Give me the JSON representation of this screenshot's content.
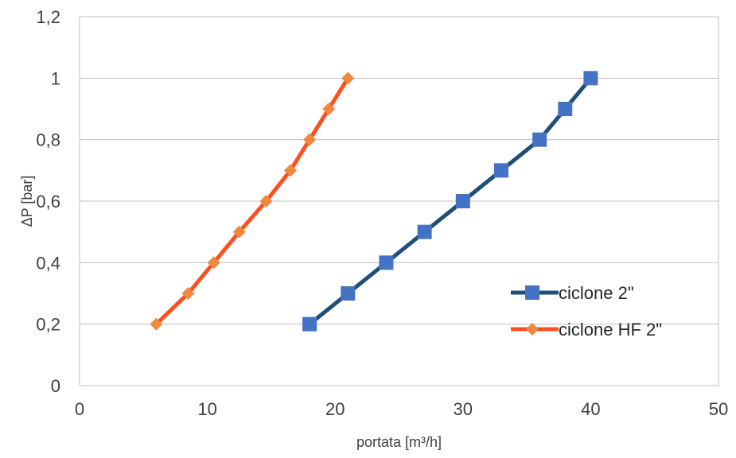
{
  "chart_data": {
    "type": "line",
    "title": "",
    "xlabel": "portata [m³/h]",
    "ylabel": "ΔP [bar]",
    "xlim": [
      0,
      50
    ],
    "ylim": [
      0,
      1.2
    ],
    "x_ticks": [
      "0",
      "10",
      "20",
      "30",
      "40",
      "50"
    ],
    "y_ticks": [
      "0",
      "0,2",
      "0,4",
      "0,6",
      "0,8",
      "1",
      "1,2"
    ],
    "grid": "horizontal",
    "legend_position": "right",
    "series": [
      {
        "name": "ciclone 2\"",
        "color": "#1f4e79",
        "marker_color": "#4472c4",
        "marker": "square",
        "points": [
          {
            "x": 18,
            "y": 0.2
          },
          {
            "x": 21,
            "y": 0.3
          },
          {
            "x": 24,
            "y": 0.4
          },
          {
            "x": 27,
            "y": 0.5
          },
          {
            "x": 30,
            "y": 0.6
          },
          {
            "x": 33,
            "y": 0.7
          },
          {
            "x": 36,
            "y": 0.8
          },
          {
            "x": 38,
            "y": 0.9
          },
          {
            "x": 40,
            "y": 1.0
          }
        ]
      },
      {
        "name": "ciclone HF 2\"",
        "color": "#ff4f1f",
        "marker_color": "#f0883e",
        "marker": "diamond",
        "points": [
          {
            "x": 6,
            "y": 0.2
          },
          {
            "x": 8.5,
            "y": 0.3
          },
          {
            "x": 10.5,
            "y": 0.4
          },
          {
            "x": 12.5,
            "y": 0.5
          },
          {
            "x": 14.6,
            "y": 0.6
          },
          {
            "x": 16.5,
            "y": 0.7
          },
          {
            "x": 18,
            "y": 0.8
          },
          {
            "x": 19.5,
            "y": 0.9
          },
          {
            "x": 21,
            "y": 1.0
          }
        ]
      }
    ]
  }
}
